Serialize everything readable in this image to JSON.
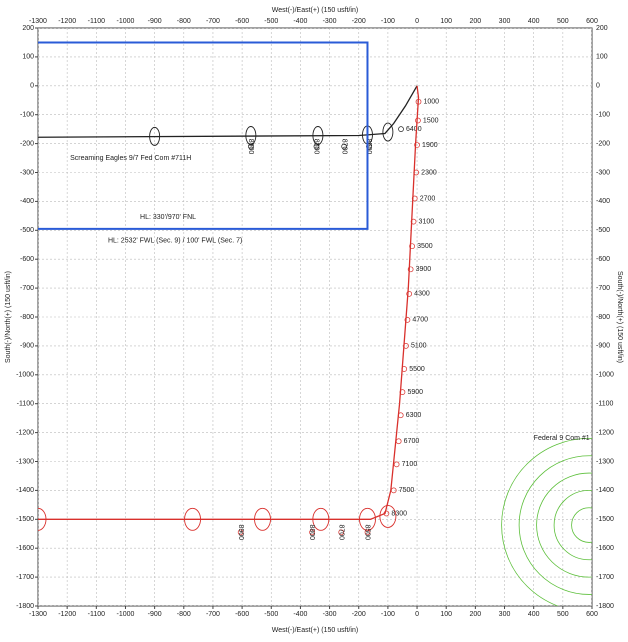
{
  "chart_data": {
    "type": "line",
    "xlabel": "West(-)/East(+) (150 usft/in)",
    "ylabel": "South(-)/North(+) (150 usft/in)",
    "xlim": [
      -1300,
      600
    ],
    "ylim": [
      -1800,
      200
    ],
    "xticks": [
      -1300,
      -1200,
      -1100,
      -1000,
      -900,
      -800,
      -700,
      -600,
      -500,
      -400,
      -300,
      -200,
      -100,
      0,
      100,
      200,
      300,
      400,
      500,
      600
    ],
    "yticks": [
      -1800,
      -1700,
      -1600,
      -1500,
      -1400,
      -1300,
      -1200,
      -1100,
      -1000,
      -900,
      -800,
      -700,
      -600,
      -500,
      -400,
      -300,
      -200,
      -100,
      0,
      100,
      200
    ],
    "grid": true,
    "series": [
      {
        "name": "Screaming Eagles 9/7 Fed Com #711H",
        "name_at": [
          -1190,
          -250
        ],
        "color": "#222222",
        "x": [
          0,
          -40,
          -80,
          -110,
          -200,
          -1300
        ],
        "y": [
          0,
          -70,
          -130,
          -165,
          -172,
          -178
        ],
        "ellipses": {
          "x": [
            -900,
            -570,
            -340,
            -170,
            -100
          ],
          "y": [
            -175,
            -172,
            -172,
            -170,
            -160
          ]
        },
        "depth_labels": [
          {
            "value": 8900,
            "x": -570,
            "y": -210,
            "rotate": true
          },
          {
            "value": 8800,
            "x": -345,
            "y": -210,
            "rotate": true
          },
          {
            "value": 8700,
            "x": -250,
            "y": -210,
            "rotate": true
          },
          {
            "value": 8500,
            "x": -165,
            "y": -210,
            "rotate": true
          },
          {
            "value": 6400,
            "x": -55,
            "y": -150,
            "rotate": false
          }
        ]
      },
      {
        "color": "#d9302c",
        "x": [
          0,
          5,
          -5,
          -30,
          -60,
          -90,
          -110,
          -160,
          -1300
        ],
        "y": [
          0,
          -40,
          -200,
          -700,
          -1100,
          -1400,
          -1480,
          -1500,
          -1500
        ],
        "ellipses": {
          "x": [
            -1300,
            -770,
            -530,
            -330,
            -170,
            -100
          ],
          "y": [
            -1500,
            -1500,
            -1500,
            -1500,
            -1500,
            -1490
          ]
        },
        "depth_labels": [
          {
            "value": 1000,
            "x": 5,
            "y": -55,
            "rotate": false
          },
          {
            "value": 1500,
            "x": 3,
            "y": -120,
            "rotate": false
          },
          {
            "value": 1900,
            "x": 0,
            "y": -205,
            "rotate": false
          },
          {
            "value": 2300,
            "x": -3,
            "y": -300,
            "rotate": false
          },
          {
            "value": 2700,
            "x": -8,
            "y": -390,
            "rotate": false
          },
          {
            "value": 3100,
            "x": -12,
            "y": -470,
            "rotate": false
          },
          {
            "value": 3500,
            "x": -17,
            "y": -555,
            "rotate": false
          },
          {
            "value": 3900,
            "x": -22,
            "y": -635,
            "rotate": false
          },
          {
            "value": 4300,
            "x": -27,
            "y": -720,
            "rotate": false
          },
          {
            "value": 4700,
            "x": -33,
            "y": -810,
            "rotate": false
          },
          {
            "value": 5100,
            "x": -38,
            "y": -900,
            "rotate": false
          },
          {
            "value": 5500,
            "x": -44,
            "y": -980,
            "rotate": false
          },
          {
            "value": 5900,
            "x": -50,
            "y": -1060,
            "rotate": false
          },
          {
            "value": 6300,
            "x": -56,
            "y": -1140,
            "rotate": false
          },
          {
            "value": 6700,
            "x": -63,
            "y": -1230,
            "rotate": false
          },
          {
            "value": 7100,
            "x": -70,
            "y": -1310,
            "rotate": false
          },
          {
            "value": 7500,
            "x": -80,
            "y": -1400,
            "rotate": false
          },
          {
            "value": 8300,
            "x": -105,
            "y": -1480,
            "rotate": false
          },
          {
            "value": 8900,
            "x": -605,
            "y": -1545,
            "rotate": true
          },
          {
            "value": 8800,
            "x": -360,
            "y": -1545,
            "rotate": true
          },
          {
            "value": 8700,
            "x": -260,
            "y": -1545,
            "rotate": true
          },
          {
            "value": 8500,
            "x": -170,
            "y": -1545,
            "rotate": true
          }
        ]
      },
      {
        "color": "#2a5bd7",
        "x": [
          -1300,
          -170,
          -170,
          -1300
        ],
        "y": [
          150,
          150,
          -495,
          -495
        ]
      },
      {
        "name": "Federal 9 Com #1",
        "name_at": [
          400,
          -1220
        ],
        "color": "#5cbf3a",
        "center": [
          590,
          -1520
        ],
        "radii": [
          60,
          120,
          180,
          240,
          300
        ]
      }
    ],
    "annotations": [
      {
        "text": "HL: 330'/970' FNL",
        "x": -950,
        "y": -455,
        "color": "#2a5bd7"
      },
      {
        "text": "HL: 2532' FWL (Sec. 9) / 100' FWL (Sec. 7)",
        "x": -1060,
        "y": -535,
        "color": "#2a5bd7"
      }
    ]
  }
}
